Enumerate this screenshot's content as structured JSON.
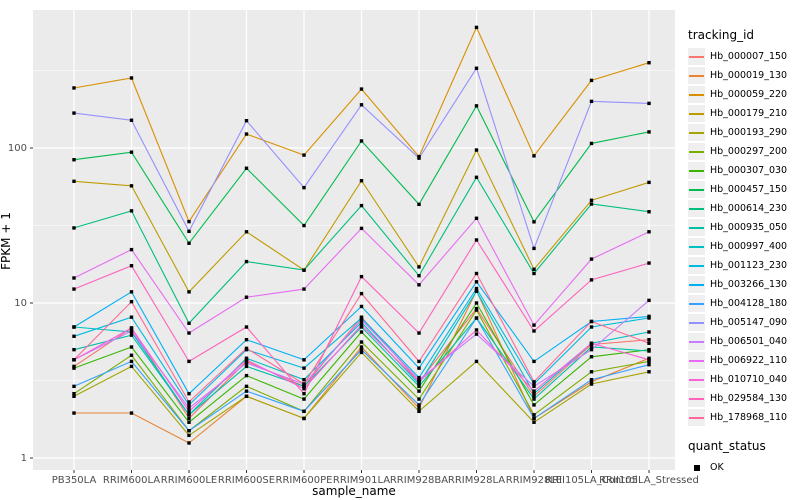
{
  "figure": {
    "background": "#FFFFFF",
    "panel_background": "#EBEBEB",
    "grid_color": "#FFFFFF",
    "tick_label_color": "#4D4D4D",
    "axis_title_color": "#000000"
  },
  "axes": {
    "x_title": "sample_name",
    "y_title": "FPKM + 1",
    "y_tick_labels": [
      "1",
      "10",
      "100"
    ],
    "y_tick_values": [
      1,
      10,
      100
    ],
    "y_minor_values": [
      3.1623,
      31.623,
      316.23
    ]
  },
  "legend": {
    "tracking_title": "tracking_id",
    "quant_title": "quant_status",
    "quant_items": [
      {
        "label": "OK",
        "symbol": "black-square"
      }
    ]
  },
  "chart_data": {
    "type": "line",
    "title": "",
    "xlabel": "sample_name",
    "ylabel": "FPKM + 1",
    "y_scale": "log10",
    "ylim": [
      1,
      777
    ],
    "grid": true,
    "legend_position": "right",
    "point_marker": "black-square",
    "categories": [
      "PB350LA",
      "RRIM600LA",
      "RRIM600LE",
      "RRIM600SE",
      "RRIM600PE",
      "RRIM901LA",
      "RRIM928BA",
      "RRIM928LA",
      "RRIM928LE",
      "RRII105LA_Control",
      "RRII105LA_Stressed"
    ],
    "series": [
      {
        "name": "Hb_000007_150",
        "color": "#F8766D",
        "values": [
          3.9,
          6.9,
          1.8,
          4.2,
          2.9,
          8.1,
          3.1,
          9.2,
          2.5,
          5.4,
          5.8
        ]
      },
      {
        "name": "Hb_000019_130",
        "color": "#EA8331",
        "values": [
          1.95,
          1.95,
          1.25,
          2.5,
          1.8,
          5.2,
          2.1,
          12.0,
          1.8,
          3.1,
          4.4
        ]
      },
      {
        "name": "Hb_000059_220",
        "color": "#D89000",
        "values": [
          244,
          283,
          33.5,
          123,
          90,
          240,
          88,
          600,
          89,
          273,
          355
        ]
      },
      {
        "name": "Hb_000179_210",
        "color": "#C09B00",
        "values": [
          61,
          57,
          11.8,
          28.8,
          16.3,
          61.5,
          17.1,
          97,
          16.5,
          46,
          60
        ]
      },
      {
        "name": "Hb_000193_290",
        "color": "#A3A500",
        "values": [
          2.5,
          3.9,
          1.4,
          2.5,
          1.8,
          4.8,
          2.0,
          4.2,
          1.7,
          3.0,
          3.6
        ]
      },
      {
        "name": "Hb_000297_200",
        "color": "#7CAE00",
        "values": [
          2.6,
          4.6,
          1.5,
          2.9,
          2.0,
          5.6,
          2.4,
          9.0,
          1.9,
          3.6,
          4.2
        ]
      },
      {
        "name": "Hb_000307_030",
        "color": "#39B600",
        "values": [
          3.8,
          5.2,
          1.7,
          3.4,
          2.4,
          6.5,
          2.7,
          10.0,
          2.2,
          4.5,
          5.0
        ]
      },
      {
        "name": "Hb_000457_150",
        "color": "#00BB4E",
        "values": [
          84,
          94,
          24.3,
          74,
          31.6,
          111,
          43.3,
          187,
          33.4,
          107,
          127
        ]
      },
      {
        "name": "Hb_000614_230",
        "color": "#00BF7D",
        "values": [
          30.5,
          39.3,
          7.4,
          18.5,
          16.3,
          42.5,
          15.0,
          64.7,
          15.5,
          43.5,
          38.8
        ]
      },
      {
        "name": "Hb_000935_050",
        "color": "#00C1A3",
        "values": [
          5.0,
          6.2,
          1.9,
          3.9,
          2.9,
          7.0,
          2.9,
          8.0,
          2.4,
          5.2,
          4.9
        ]
      },
      {
        "name": "Hb_000997_400",
        "color": "#00BFC4",
        "values": [
          7.0,
          6.5,
          1.9,
          4.4,
          3.2,
          7.5,
          3.0,
          11.9,
          2.6,
          5.5,
          6.5
        ]
      },
      {
        "name": "Hb_001123_230",
        "color": "#00BAE0",
        "values": [
          6.1,
          8.1,
          2.2,
          5.0,
          3.8,
          8.0,
          3.3,
          12.4,
          3.0,
          7.0,
          8.0
        ]
      },
      {
        "name": "Hb_003266_130",
        "color": "#00B0F6",
        "values": [
          7.0,
          11.8,
          2.6,
          5.8,
          4.3,
          9.5,
          3.8,
          13.7,
          4.2,
          7.6,
          8.2
        ]
      },
      {
        "name": "Hb_004128_180",
        "color": "#35A2FF",
        "values": [
          2.9,
          4.2,
          1.5,
          2.7,
          2.0,
          5.0,
          2.2,
          8.0,
          1.8,
          3.2,
          4.0
        ]
      },
      {
        "name": "Hb_005147_090",
        "color": "#9590FF",
        "values": [
          168,
          151,
          29,
          150,
          55.5,
          190,
          86,
          327,
          22.5,
          200,
          194
        ]
      },
      {
        "name": "Hb_006501_040",
        "color": "#C77CFF",
        "values": [
          4.3,
          6.6,
          2.1,
          4.1,
          3.0,
          7.8,
          3.2,
          6.3,
          2.9,
          5.0,
          10.4
        ]
      },
      {
        "name": "Hb_006922_110",
        "color": "#E76BF3",
        "values": [
          14.5,
          22.1,
          6.4,
          10.9,
          12.3,
          30.3,
          13.1,
          35.2,
          7.2,
          19.2,
          28.8
        ]
      },
      {
        "name": "Hb_010710_040",
        "color": "#FA62DB",
        "values": [
          4.3,
          6.9,
          2.0,
          4.3,
          2.8,
          7.2,
          3.1,
          6.7,
          2.7,
          5.5,
          4.3
        ]
      },
      {
        "name": "Hb_029584_130",
        "color": "#FF62BC",
        "values": [
          12.3,
          17.4,
          4.2,
          7.0,
          2.6,
          14.8,
          6.4,
          25.5,
          6.6,
          14.1,
          18.1
        ]
      },
      {
        "name": "Hb_178968_110",
        "color": "#FF6A98",
        "values": [
          4.3,
          10.2,
          2.3,
          5.1,
          3.0,
          11.5,
          4.2,
          15.5,
          3.1,
          7.6,
          5.5
        ]
      }
    ]
  }
}
